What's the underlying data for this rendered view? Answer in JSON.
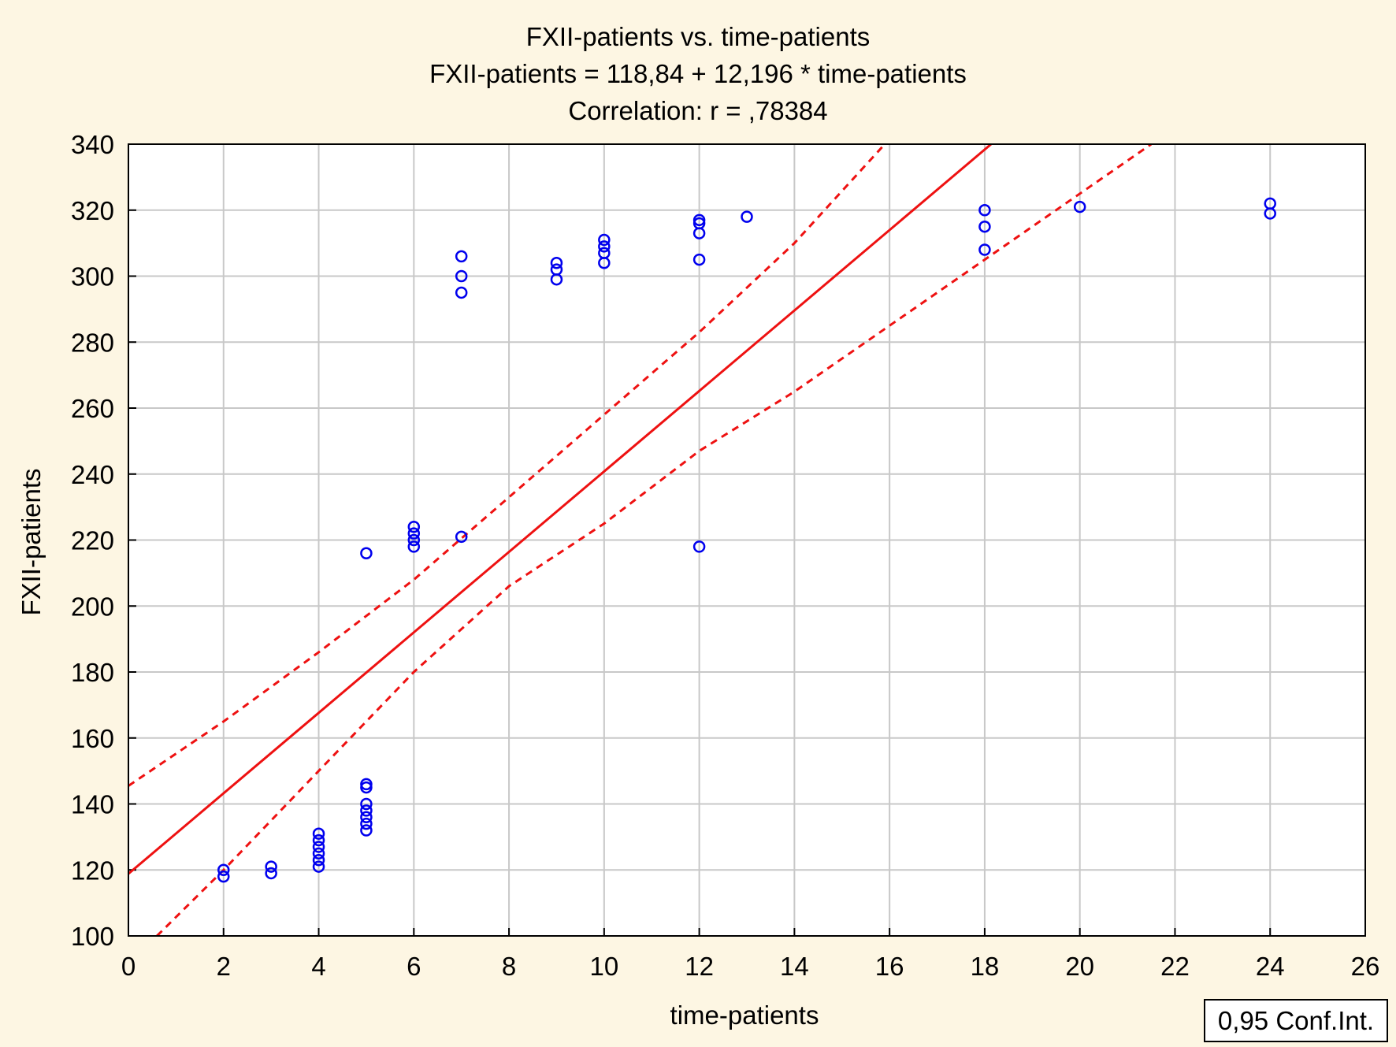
{
  "chart_data": {
    "type": "scatter",
    "title": "FXII-patients vs. time-patients",
    "subtitle": "FXII-patients = 118,84 + 12,196 * time-patients",
    "correlation_text": "Correlation: r = ,78384",
    "xlabel": "time-patients",
    "ylabel": "FXII-patients",
    "xlim": [
      0,
      26
    ],
    "ylim": [
      100,
      340
    ],
    "xticks": [
      0,
      2,
      4,
      6,
      8,
      10,
      12,
      14,
      16,
      18,
      20,
      22,
      24,
      26
    ],
    "yticks": [
      100,
      120,
      140,
      160,
      180,
      200,
      220,
      240,
      260,
      280,
      300,
      320,
      340
    ],
    "grid": true,
    "legend": {
      "label": "0,95 Conf.Int.",
      "placement": "bottom-right"
    },
    "colors": {
      "points": "#0000ee",
      "regression": "#ee1111",
      "background": "#fdf6e3"
    },
    "regression": {
      "intercept": 118.84,
      "slope": 12.196
    },
    "confidence_upper": [
      [
        0,
        145.5
      ],
      [
        2,
        165
      ],
      [
        4,
        186
      ],
      [
        6,
        208
      ],
      [
        8,
        233
      ],
      [
        10,
        258
      ],
      [
        12,
        283
      ],
      [
        14,
        310
      ],
      [
        15.9,
        340
      ]
    ],
    "confidence_lower": [
      [
        0.6,
        100
      ],
      [
        2,
        120
      ],
      [
        4,
        150
      ],
      [
        6,
        180
      ],
      [
        8,
        206
      ],
      [
        10,
        225
      ],
      [
        12,
        247
      ],
      [
        14,
        265
      ],
      [
        16,
        285
      ],
      [
        18,
        305
      ],
      [
        20,
        325
      ],
      [
        21.5,
        340
      ]
    ],
    "series": [
      {
        "points": [
          [
            2,
            118
          ],
          [
            2,
            120
          ],
          [
            3,
            119
          ],
          [
            3,
            121
          ],
          [
            4,
            121
          ],
          [
            4,
            123
          ],
          [
            4,
            125
          ],
          [
            4,
            127
          ],
          [
            4,
            129
          ],
          [
            4,
            131
          ],
          [
            5,
            132
          ],
          [
            5,
            134
          ],
          [
            5,
            136
          ],
          [
            5,
            138
          ],
          [
            5,
            140
          ],
          [
            5,
            145
          ],
          [
            5,
            146
          ],
          [
            5,
            216
          ],
          [
            6,
            218
          ],
          [
            6,
            220
          ],
          [
            6,
            222
          ],
          [
            6,
            224
          ],
          [
            7,
            221
          ],
          [
            7,
            295
          ],
          [
            7,
            300
          ],
          [
            7,
            306
          ],
          [
            9,
            299
          ],
          [
            9,
            302
          ],
          [
            9,
            304
          ],
          [
            10,
            304
          ],
          [
            10,
            307
          ],
          [
            10,
            309
          ],
          [
            10,
            311
          ],
          [
            12,
            218
          ],
          [
            12,
            305
          ],
          [
            12,
            313
          ],
          [
            12,
            316
          ],
          [
            12,
            317
          ],
          [
            13,
            318
          ],
          [
            18,
            308
          ],
          [
            18,
            315
          ],
          [
            18,
            320
          ],
          [
            20,
            321
          ],
          [
            24,
            319
          ],
          [
            24,
            322
          ]
        ]
      }
    ]
  }
}
